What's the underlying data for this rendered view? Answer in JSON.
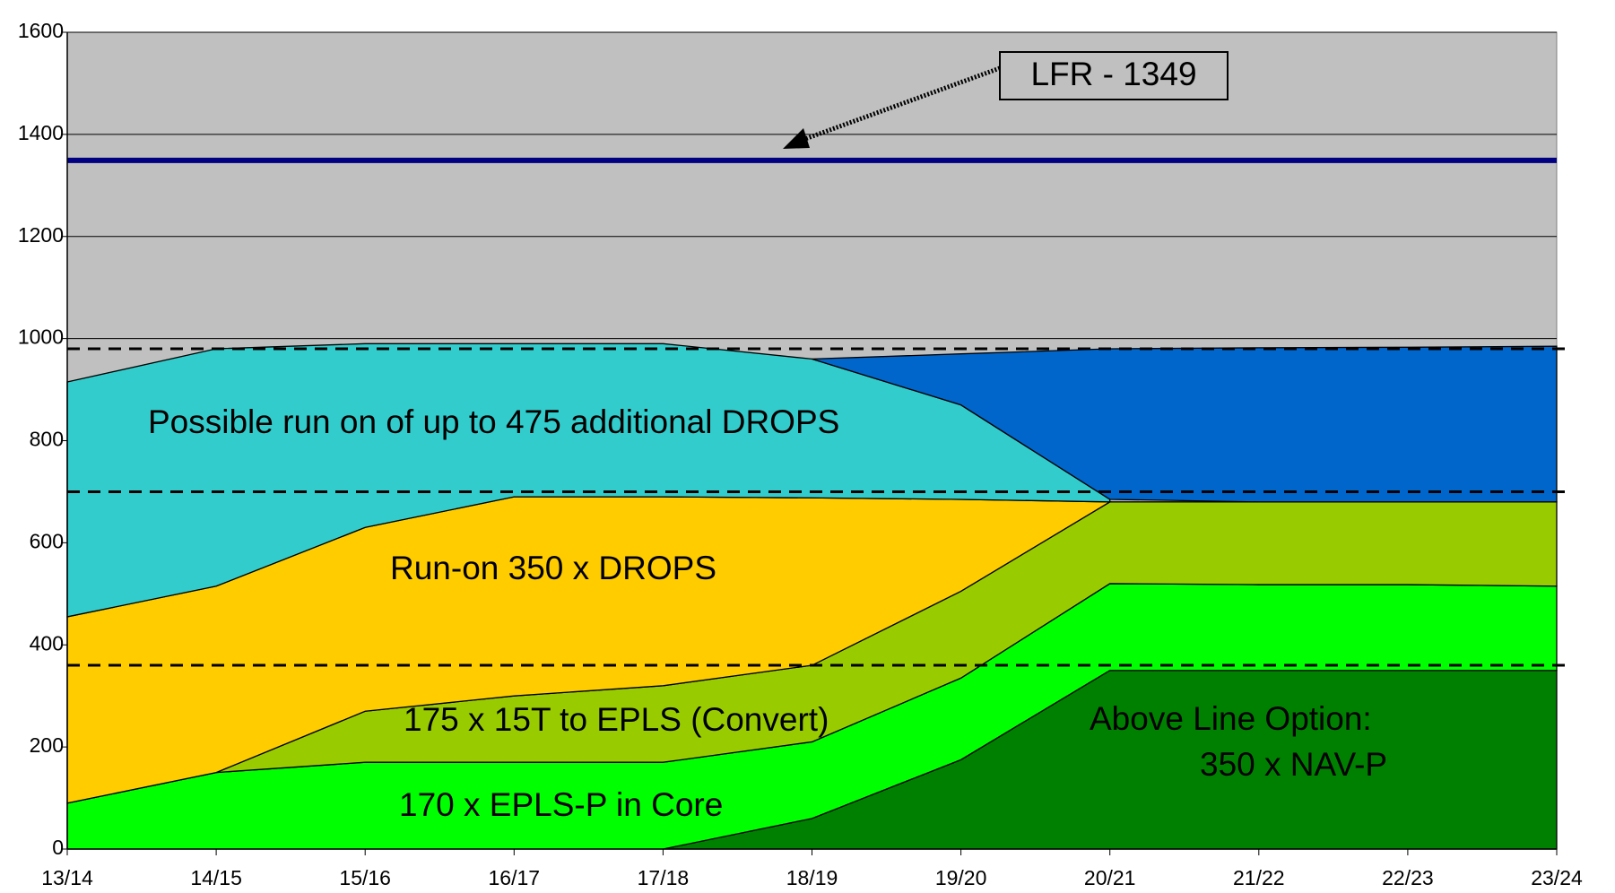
{
  "chart_data": {
    "type": "stacked_area",
    "categories": [
      "13/14",
      "14/15",
      "15/16",
      "16/17",
      "17/18",
      "18/19",
      "19/20",
      "20/21",
      "21/22",
      "22/23",
      "23/24"
    ],
    "series": [
      {
        "name": [
          "Above Line Option:",
          "350 x NAV-P"
        ],
        "color": "#008000",
        "values": [
          null,
          null,
          null,
          null,
          0,
          60,
          175,
          350,
          350,
          350,
          350
        ]
      },
      {
        "name": "170 x EPLS-P in Core",
        "color": "#00ff00",
        "values": [
          90,
          150,
          170,
          170,
          170,
          150,
          160,
          170,
          168,
          168,
          165
        ]
      },
      {
        "name": "175 x 15T to EPLS (Convert)",
        "color": "#99cc00",
        "values": [
          0,
          0,
          100,
          130,
          150,
          150,
          170,
          160,
          162,
          162,
          165
        ]
      },
      {
        "name": "Run-on 350 x DROPS",
        "color": "#ffcc00",
        "values": [
          365,
          365,
          360,
          390,
          370,
          328,
          180,
          0,
          null,
          null,
          null
        ]
      },
      {
        "name": "Possible run on of up to 475 additional DROPS",
        "color": "#33cccc",
        "values": [
          460,
          465,
          360,
          300,
          300,
          272,
          185,
          5,
          null,
          null,
          null
        ]
      },
      {
        "color": "#0066cc",
        "values": [
          null,
          null,
          null,
          null,
          null,
          0,
          100,
          295,
          302,
          303,
          305
        ]
      }
    ],
    "reference_line": {
      "label": "LFR - 1349",
      "value": 1349,
      "color": "#000080"
    },
    "dashed_lines": [
      980,
      700,
      360
    ],
    "ylim": [
      0,
      1600
    ],
    "yticks": [
      0,
      200,
      400,
      600,
      800,
      1000,
      1200,
      1400,
      1600
    ],
    "grid": true,
    "background": "#c0c0c0"
  }
}
